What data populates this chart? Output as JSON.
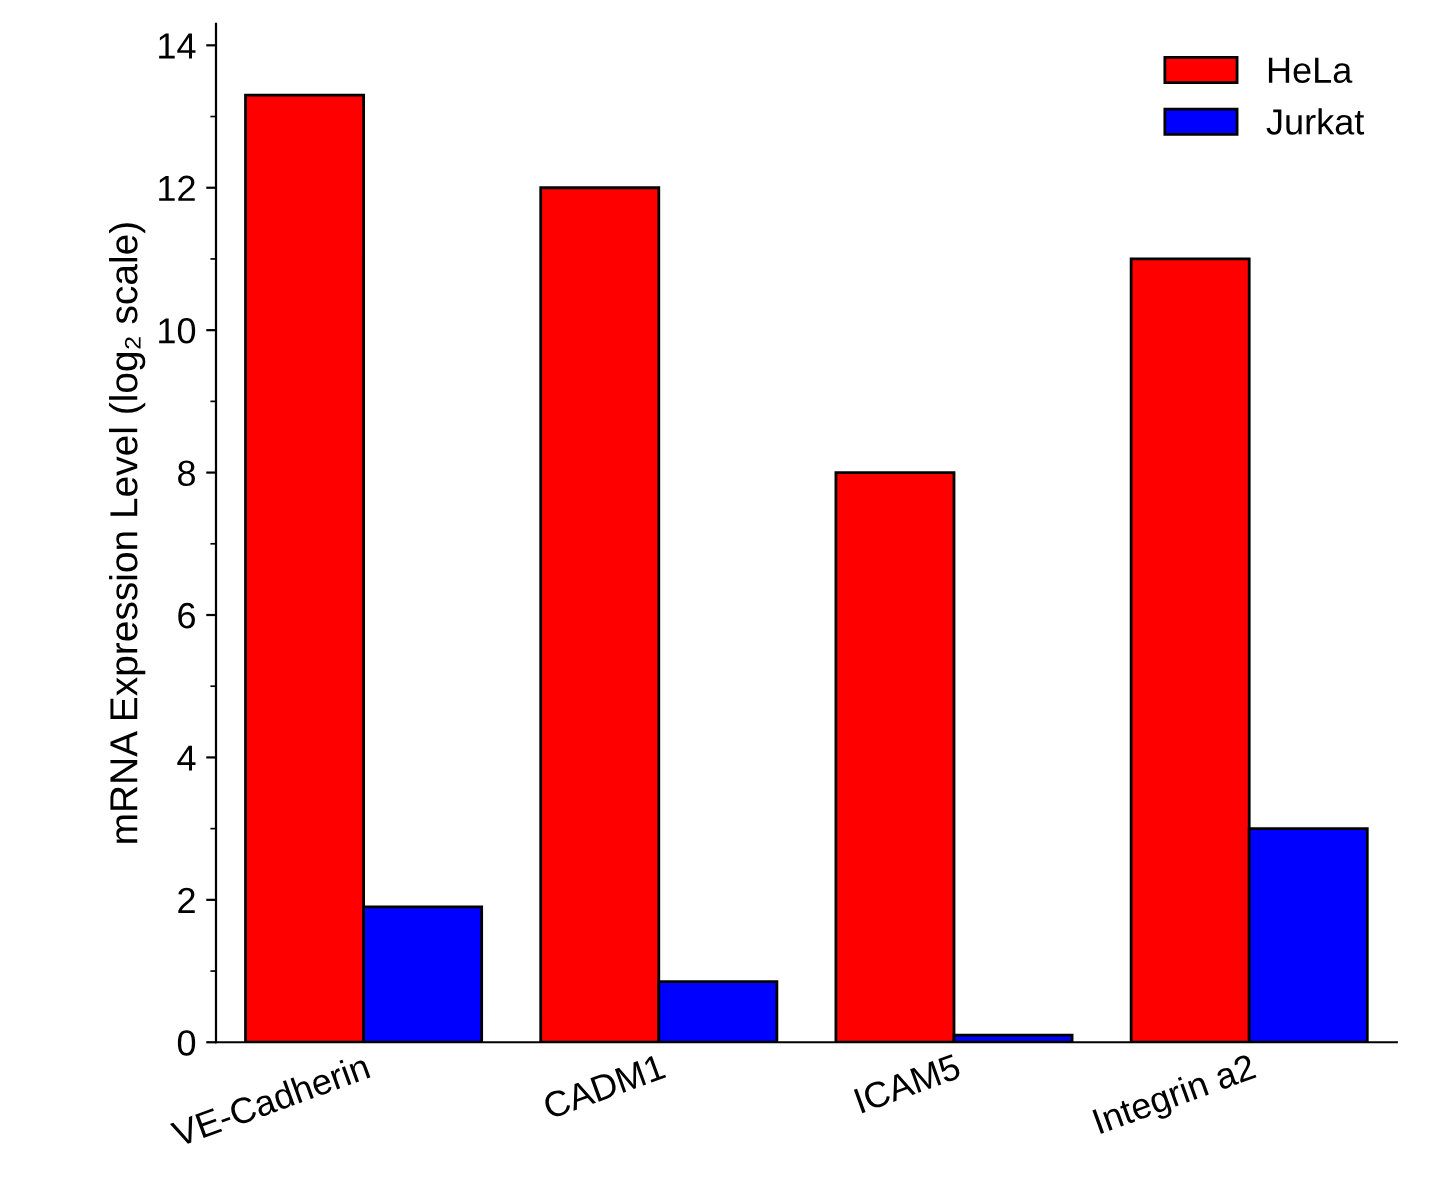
{
  "chart_data": {
    "type": "bar",
    "ylabel": "mRNA Expression Level (log₂ scale)",
    "categories": [
      "VE-Cadherin",
      "CADM1",
      "ICAM5",
      "Integrin a2"
    ],
    "series": [
      {
        "name": "HeLa",
        "color": "#ff0000",
        "values": [
          13.3,
          12.0,
          8.0,
          11.0
        ]
      },
      {
        "name": "Jurkat",
        "color": "#0000ff",
        "values": [
          1.9,
          0.85,
          0.1,
          3.0
        ]
      }
    ],
    "ylim": [
      0,
      14.3
    ],
    "yticks": [
      0,
      2,
      4,
      6,
      8,
      10,
      12,
      14
    ],
    "grid": false,
    "legend": "top right"
  }
}
